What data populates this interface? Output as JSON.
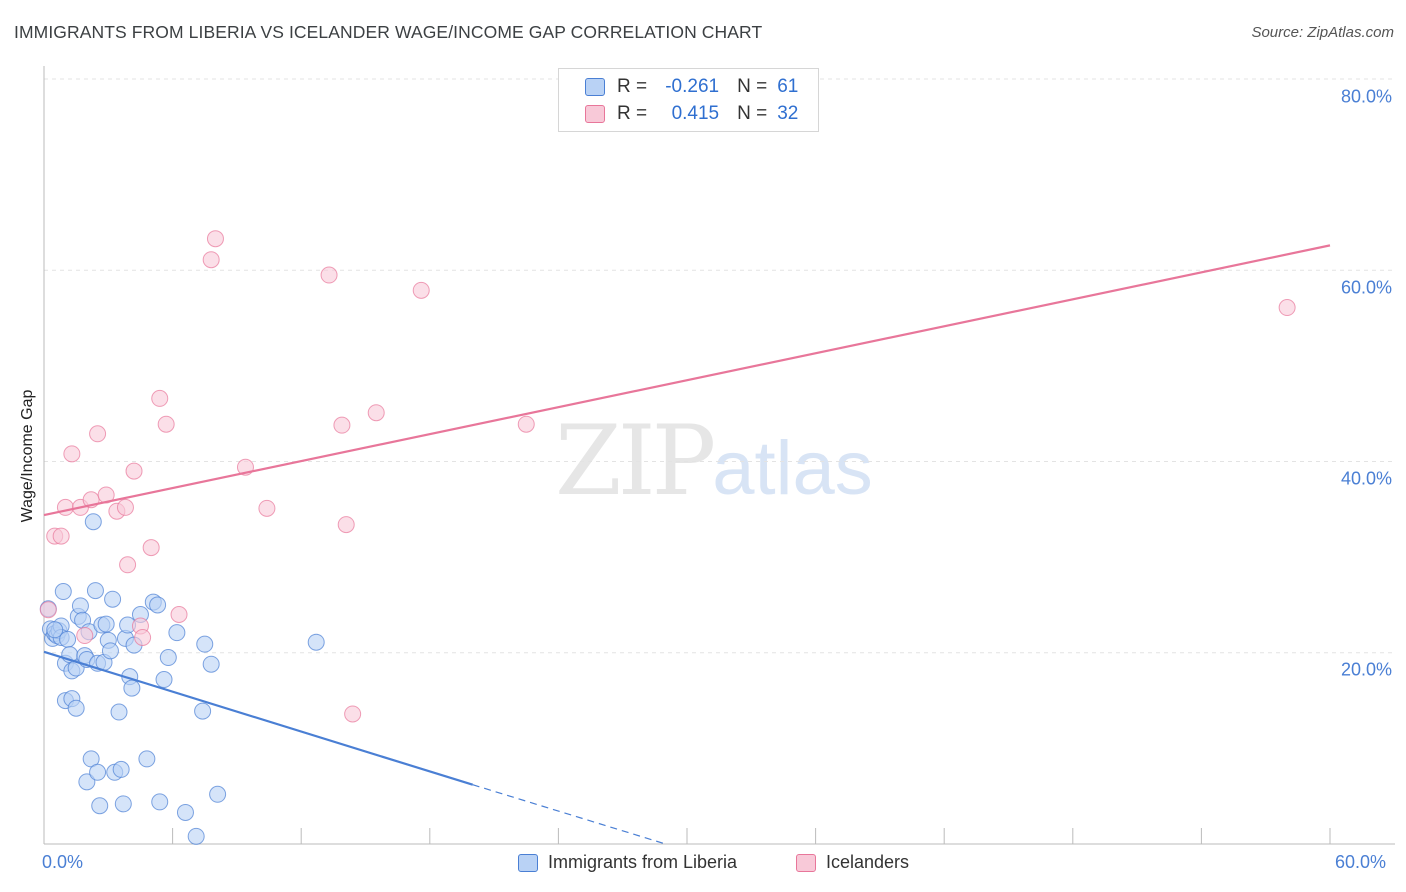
{
  "header": {
    "title": "IMMIGRANTS FROM LIBERIA VS ICELANDER WAGE/INCOME GAP CORRELATION CHART",
    "source": "Source: ZipAtlas.com"
  },
  "legend": {
    "r_label": "R =",
    "n_label": "N =",
    "series": [
      {
        "r": "-0.261",
        "n": "61"
      },
      {
        "r": "0.415",
        "n": "32"
      }
    ]
  },
  "watermark": {
    "zip": "ZIP",
    "atlas": "atlas"
  },
  "chart_data": {
    "type": "scatter",
    "title": "IMMIGRANTS FROM LIBERIA VS ICELANDER WAGE/INCOME GAP CORRELATION CHART",
    "xlabel": "",
    "ylabel": "Wage/Income Gap",
    "xlim": [
      0,
      60
    ],
    "ylim": [
      0,
      80
    ],
    "x_tick_labels": [
      "0.0%",
      "60.0%"
    ],
    "y_tick_labels": [
      "80.0%",
      "60.0%",
      "40.0%",
      "20.0%"
    ],
    "y_ticks": [
      80,
      60,
      40,
      20
    ],
    "grid": true,
    "legend_position": "top-center",
    "colors": {
      "blue": "#4a7fd4",
      "blue_fill": "#b9d2f5",
      "pink": "#e8769a",
      "pink_fill": "#f8c9d8"
    },
    "series": [
      {
        "name": "Immigrants from Liberia",
        "color": "#4a7fd4",
        "trend": {
          "x0": 0,
          "y0": 20.1,
          "x1": 20,
          "y1": 6.2,
          "dash_to_x": 29,
          "dash_to_y": 0
        },
        "points": [
          [
            0.2,
            24.6
          ],
          [
            0.3,
            22.5
          ],
          [
            0.4,
            21.5
          ],
          [
            0.5,
            22.0
          ],
          [
            0.6,
            21.8
          ],
          [
            0.7,
            22.3
          ],
          [
            0.8,
            22.8
          ],
          [
            0.8,
            21.6
          ],
          [
            0.9,
            26.4
          ],
          [
            1.0,
            18.9
          ],
          [
            1.0,
            15.0
          ],
          [
            1.1,
            21.4
          ],
          [
            1.2,
            19.8
          ],
          [
            1.3,
            15.2
          ],
          [
            1.3,
            18.1
          ],
          [
            1.5,
            18.4
          ],
          [
            1.5,
            14.2
          ],
          [
            1.6,
            23.8
          ],
          [
            1.7,
            24.9
          ],
          [
            1.8,
            23.4
          ],
          [
            1.9,
            19.7
          ],
          [
            2.0,
            19.3
          ],
          [
            2.0,
            6.5
          ],
          [
            2.1,
            22.2
          ],
          [
            2.2,
            8.9
          ],
          [
            2.3,
            33.7
          ],
          [
            2.4,
            26.5
          ],
          [
            2.5,
            18.9
          ],
          [
            2.5,
            7.5
          ],
          [
            2.6,
            4.0
          ],
          [
            2.7,
            22.9
          ],
          [
            2.8,
            19.0
          ],
          [
            2.9,
            23.0
          ],
          [
            3.0,
            21.3
          ],
          [
            3.1,
            20.2
          ],
          [
            3.2,
            25.6
          ],
          [
            3.3,
            7.5
          ],
          [
            3.5,
            13.8
          ],
          [
            3.6,
            7.8
          ],
          [
            3.7,
            4.2
          ],
          [
            3.8,
            21.5
          ],
          [
            3.9,
            22.9
          ],
          [
            4.0,
            17.5
          ],
          [
            4.1,
            16.3
          ],
          [
            4.2,
            20.8
          ],
          [
            4.5,
            24.0
          ],
          [
            4.8,
            8.9
          ],
          [
            5.1,
            25.3
          ],
          [
            5.3,
            25.0
          ],
          [
            5.4,
            4.4
          ],
          [
            5.6,
            17.2
          ],
          [
            5.8,
            19.5
          ],
          [
            6.2,
            22.1
          ],
          [
            6.6,
            3.3
          ],
          [
            7.1,
            0.8
          ],
          [
            7.4,
            13.9
          ],
          [
            7.5,
            20.9
          ],
          [
            7.8,
            18.8
          ],
          [
            8.1,
            5.2
          ],
          [
            12.7,
            21.1
          ],
          [
            0.5,
            22.4
          ]
        ]
      },
      {
        "name": "Icelanders",
        "color": "#e8769a",
        "trend": {
          "x0": 0,
          "y0": 34.4,
          "x1": 60,
          "y1": 62.6
        },
        "points": [
          [
            0.2,
            24.5
          ],
          [
            0.5,
            32.2
          ],
          [
            0.8,
            32.2
          ],
          [
            1.0,
            35.2
          ],
          [
            1.3,
            40.8
          ],
          [
            1.7,
            35.2
          ],
          [
            1.9,
            21.8
          ],
          [
            2.2,
            36.0
          ],
          [
            2.5,
            42.9
          ],
          [
            2.9,
            36.5
          ],
          [
            3.4,
            34.8
          ],
          [
            3.8,
            35.2
          ],
          [
            3.9,
            29.2
          ],
          [
            4.2,
            39.0
          ],
          [
            4.5,
            22.8
          ],
          [
            4.6,
            21.6
          ],
          [
            5.0,
            31.0
          ],
          [
            5.4,
            46.6
          ],
          [
            5.7,
            43.9
          ],
          [
            6.3,
            24.0
          ],
          [
            7.8,
            61.1
          ],
          [
            8.0,
            63.3
          ],
          [
            9.4,
            39.4
          ],
          [
            10.4,
            35.1
          ],
          [
            13.3,
            59.5
          ],
          [
            13.9,
            43.8
          ],
          [
            14.1,
            33.4
          ],
          [
            14.4,
            13.6
          ],
          [
            15.5,
            45.1
          ],
          [
            17.6,
            57.9
          ],
          [
            22.5,
            43.9
          ],
          [
            58.0,
            56.1
          ]
        ]
      }
    ]
  },
  "bottom_legend": {
    "items": [
      "Immigrants from Liberia",
      "Icelanders"
    ]
  }
}
